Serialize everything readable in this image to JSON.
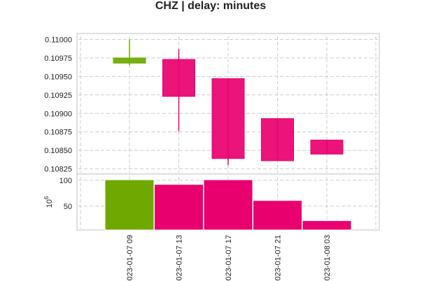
{
  "chart_data": {
    "type": "candlestick",
    "title": "CHZ | delay: minutes",
    "colors": {
      "up": "#6fa800",
      "down": "#e8006f"
    },
    "x": [
      "2023-01-07 09",
      "2023-01-07 13",
      "2023-01-07 17",
      "2023-01-07 21",
      "2023-01-08 03"
    ],
    "x_tick_labels": [
      "023-01-07 09",
      "023-01-07 13",
      "023-01-07 17",
      "023-01-07 21",
      "023-01-08 03"
    ],
    "price": {
      "ylim": [
        0.10818,
        0.11008
      ],
      "yticks": [
        0.11,
        0.10975,
        0.1095,
        0.10925,
        0.109,
        0.10875,
        0.1085,
        0.10825
      ],
      "ytick_labels": [
        "0.11000",
        "0.10975",
        "0.10950",
        "0.10925",
        "0.10900",
        "0.10875",
        "0.10850",
        "0.10825"
      ],
      "grid": true,
      "candles": [
        {
          "open": 0.10968,
          "high": 0.11,
          "low": 0.10965,
          "close": 0.10975,
          "direction": "up"
        },
        {
          "open": 0.10973,
          "high": 0.10987,
          "low": 0.10876,
          "close": 0.10923,
          "direction": "down"
        },
        {
          "open": 0.10947,
          "high": 0.10947,
          "low": 0.1083,
          "close": 0.10839,
          "direction": "down"
        },
        {
          "open": 0.10893,
          "high": 0.10893,
          "low": 0.10836,
          "close": 0.10836,
          "direction": "down"
        },
        {
          "open": 0.10864,
          "high": 0.10864,
          "low": 0.10845,
          "close": 0.10845,
          "direction": "down"
        }
      ]
    },
    "volume": {
      "ylabel": "10",
      "ylabel_exponent": "6",
      "ylim": [
        4,
        112
      ],
      "yticks": [
        100,
        50
      ],
      "ytick_labels": [
        "100",
        "50"
      ],
      "grid": true,
      "values": [
        101,
        92,
        101,
        61,
        22
      ]
    }
  }
}
